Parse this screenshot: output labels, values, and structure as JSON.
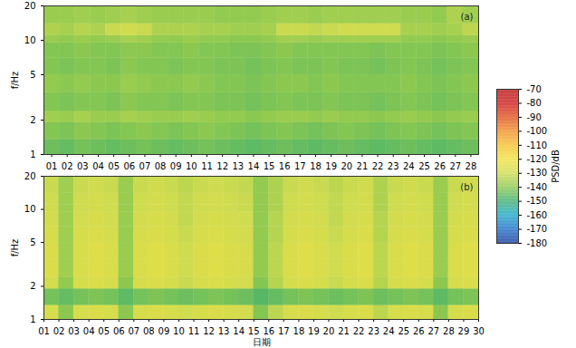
{
  "chart_data": [
    {
      "type": "heatmap",
      "annotation": "(a)",
      "y_label": "f/Hz",
      "log": "y",
      "xlim": [
        0.5,
        28.5
      ],
      "xticks": [
        {
          "value": 1,
          "label": "01"
        },
        {
          "value": 2,
          "label": "02"
        },
        {
          "value": 3,
          "label": "03"
        },
        {
          "value": 4,
          "label": "04"
        },
        {
          "value": 5,
          "label": "05"
        },
        {
          "value": 6,
          "label": "06"
        },
        {
          "value": 7,
          "label": "07"
        },
        {
          "value": 8,
          "label": "08"
        },
        {
          "value": 9,
          "label": "09"
        },
        {
          "value": 10,
          "label": "10"
        },
        {
          "value": 11,
          "label": "11"
        },
        {
          "value": 12,
          "label": "12"
        },
        {
          "value": 13,
          "label": "13"
        },
        {
          "value": 14,
          "label": "14"
        },
        {
          "value": 15,
          "label": "15"
        },
        {
          "value": 16,
          "label": "16"
        },
        {
          "value": 17,
          "label": "17"
        },
        {
          "value": 18,
          "label": "18"
        },
        {
          "value": 19,
          "label": "19"
        },
        {
          "value": 20,
          "label": "20"
        },
        {
          "value": 21,
          "label": "21"
        },
        {
          "value": 22,
          "label": "22"
        },
        {
          "value": 23,
          "label": "23"
        },
        {
          "value": 24,
          "label": "24"
        },
        {
          "value": 25,
          "label": "25"
        },
        {
          "value": 26,
          "label": "26"
        },
        {
          "value": 27,
          "label": "27"
        },
        {
          "value": 28,
          "label": "28"
        }
      ],
      "ylim": [
        1,
        20
      ],
      "yticks": [
        1,
        2,
        5,
        10,
        20
      ],
      "x_bins": [
        0.5,
        1.5,
        2.5,
        3.5,
        4.5,
        5.5,
        6.5,
        7.5,
        8.5,
        9.5,
        10.5,
        11.5,
        12.5,
        13.5,
        14.5,
        15.5,
        16.5,
        17.5,
        18.5,
        19.5,
        20.5,
        21.5,
        22.5,
        23.5,
        24.5,
        25.5,
        26.5,
        27.5,
        28.5
      ],
      "y_bins": [
        1,
        1.35,
        1.9,
        2.4,
        3.5,
        5,
        7,
        9.5,
        11,
        14,
        20
      ],
      "cells": [
        [
          -144,
          -145,
          -143,
          -144,
          -145,
          -144,
          -143,
          -144,
          -145,
          -144,
          -143,
          -144,
          -145,
          -146,
          -145,
          -144,
          -145,
          -146,
          -145,
          -144,
          -145,
          -146,
          -145,
          -144,
          -145,
          -146,
          -145,
          -144
        ],
        [
          -141,
          -142,
          -140,
          -141,
          -142,
          -141,
          -140,
          -141,
          -142,
          -141,
          -140,
          -141,
          -142,
          -143,
          -142,
          -141,
          -142,
          -143,
          -142,
          -141,
          -142,
          -143,
          -142,
          -141,
          -142,
          -143,
          -142,
          -141
        ],
        [
          -137,
          -138,
          -136,
          -138,
          -138,
          -136,
          -137,
          -138,
          -138,
          -137,
          -138,
          -139,
          -139,
          -140,
          -139,
          -138,
          -138,
          -139,
          -138,
          -139,
          -139,
          -140,
          -139,
          -138,
          -139,
          -140,
          -139,
          -138
        ],
        [
          -141,
          -142,
          -141,
          -141,
          -142,
          -140,
          -141,
          -141,
          -142,
          -141,
          -141,
          -142,
          -142,
          -143,
          -142,
          -141,
          -142,
          -142,
          -141,
          -142,
          -142,
          -143,
          -142,
          -141,
          -142,
          -143,
          -142,
          -141
        ],
        [
          -139,
          -140,
          -139,
          -140,
          -140,
          -138,
          -139,
          -140,
          -140,
          -139,
          -140,
          -141,
          -141,
          -142,
          -141,
          -140,
          -140,
          -141,
          -140,
          -141,
          -141,
          -141,
          -141,
          -140,
          -141,
          -142,
          -141,
          -140
        ],
        [
          -141,
          -142,
          -141,
          -141,
          -142,
          -140,
          -141,
          -141,
          -142,
          -141,
          -141,
          -142,
          -142,
          -143,
          -142,
          -141,
          -142,
          -142,
          -141,
          -142,
          -142,
          -143,
          -142,
          -141,
          -142,
          -143,
          -142,
          -141
        ],
        [
          -141,
          -141,
          -140,
          -141,
          -141,
          -140,
          -140,
          -141,
          -141,
          -140,
          -141,
          -141,
          -142,
          -142,
          -141,
          -140,
          -141,
          -141,
          -141,
          -141,
          -141,
          -142,
          -141,
          -141,
          -141,
          -142,
          -141,
          -140
        ],
        [
          -138,
          -139,
          -138,
          -139,
          -138,
          -136,
          -137,
          -139,
          -139,
          -138,
          -139,
          -139,
          -140,
          -140,
          -139,
          -137,
          -137,
          -138,
          -137,
          -137,
          -137,
          -137,
          -137,
          -139,
          -139,
          -140,
          -139,
          -138
        ],
        [
          -135,
          -136,
          -134,
          -135,
          -131,
          -130,
          -131,
          -135,
          -135,
          -135,
          -136,
          -136,
          -137,
          -137,
          -136,
          -131,
          -131,
          -132,
          -131,
          -130,
          -130,
          -130,
          -130,
          -136,
          -136,
          -137,
          -136,
          -133
        ],
        [
          -138,
          -138,
          -137,
          -138,
          -137,
          -136,
          -137,
          -138,
          -138,
          -138,
          -138,
          -139,
          -139,
          -139,
          -138,
          -137,
          -137,
          -138,
          -137,
          -137,
          -137,
          -137,
          -137,
          -138,
          -138,
          -139,
          -135,
          -137
        ]
      ]
    },
    {
      "type": "heatmap",
      "annotation": "(b)",
      "y_label": "f/Hz",
      "x_label": "日期",
      "log": "y",
      "xlim": [
        1,
        30
      ],
      "xticks": [
        {
          "value": 1,
          "label": "01"
        },
        {
          "value": 2,
          "label": "02"
        },
        {
          "value": 3,
          "label": "03"
        },
        {
          "value": 4,
          "label": "04"
        },
        {
          "value": 5,
          "label": "05"
        },
        {
          "value": 6,
          "label": "06"
        },
        {
          "value": 7,
          "label": "07"
        },
        {
          "value": 8,
          "label": "08"
        },
        {
          "value": 9,
          "label": "09"
        },
        {
          "value": 10,
          "label": "10"
        },
        {
          "value": 11,
          "label": "11"
        },
        {
          "value": 12,
          "label": "12"
        },
        {
          "value": 13,
          "label": "13"
        },
        {
          "value": 14,
          "label": "14"
        },
        {
          "value": 15,
          "label": "15"
        },
        {
          "value": 16,
          "label": "16"
        },
        {
          "value": 17,
          "label": "17"
        },
        {
          "value": 18,
          "label": "18"
        },
        {
          "value": 19,
          "label": "19"
        },
        {
          "value": 20,
          "label": "20"
        },
        {
          "value": 21,
          "label": "21"
        },
        {
          "value": 22,
          "label": "22"
        },
        {
          "value": 23,
          "label": "23"
        },
        {
          "value": 24,
          "label": "24"
        },
        {
          "value": 25,
          "label": "25"
        },
        {
          "value": 26,
          "label": "26"
        },
        {
          "value": 27,
          "label": "27"
        },
        {
          "value": 28,
          "label": "28"
        },
        {
          "value": 29,
          "label": "29"
        },
        {
          "value": 30,
          "label": "30"
        }
      ],
      "ylim": [
        1,
        20
      ],
      "yticks": [
        1,
        2,
        5,
        10,
        20
      ],
      "x_bins": [
        1,
        2,
        3,
        4,
        5,
        6,
        7,
        8,
        9,
        10,
        11,
        12,
        13,
        14,
        15,
        16,
        17,
        18,
        19,
        20,
        21,
        22,
        23,
        24,
        25,
        26,
        27,
        28,
        29,
        30
      ],
      "y_bins": [
        1,
        1.35,
        1.9,
        2.4,
        3.5,
        5,
        7,
        9.5,
        11,
        14,
        20
      ],
      "cells": [
        [
          -128,
          -140,
          -128,
          -127,
          -128,
          -140,
          -128,
          -127,
          -128,
          -130,
          -128,
          -127,
          -128,
          -129,
          -141,
          -133,
          -128,
          -127,
          -128,
          -130,
          -128,
          -127,
          -133,
          -128,
          -127,
          -128,
          -140,
          -128,
          -127
        ],
        [
          -143,
          -145,
          -143,
          -142,
          -143,
          -146,
          -143,
          -142,
          -143,
          -144,
          -143,
          -142,
          -143,
          -144,
          -147,
          -145,
          -143,
          -142,
          -143,
          -144,
          -143,
          -142,
          -144,
          -143,
          -142,
          -143,
          -146,
          -143,
          -142
        ],
        [
          -129,
          -139,
          -128,
          -127,
          -128,
          -140,
          -128,
          -127,
          -128,
          -131,
          -128,
          -127,
          -128,
          -129,
          -141,
          -134,
          -128,
          -127,
          -128,
          -131,
          -128,
          -127,
          -134,
          -128,
          -127,
          -128,
          -140,
          -128,
          -127
        ],
        [
          -127,
          -137,
          -127,
          -126,
          -127,
          -138,
          -127,
          -126,
          -127,
          -130,
          -127,
          -126,
          -127,
          -128,
          -139,
          -133,
          -127,
          -126,
          -127,
          -130,
          -127,
          -126,
          -133,
          -127,
          -126,
          -127,
          -138,
          -127,
          -126
        ],
        [
          -127,
          -137,
          -127,
          -126,
          -127,
          -138,
          -127,
          -126,
          -127,
          -130,
          -127,
          -126,
          -127,
          -128,
          -139,
          -133,
          -127,
          -126,
          -127,
          -130,
          -127,
          -126,
          -133,
          -127,
          -126,
          -127,
          -138,
          -127,
          -126
        ],
        [
          -128,
          -137,
          -128,
          -127,
          -128,
          -138,
          -128,
          -127,
          -128,
          -131,
          -128,
          -127,
          -128,
          -129,
          -139,
          -134,
          -128,
          -127,
          -128,
          -131,
          -128,
          -127,
          -134,
          -128,
          -127,
          -128,
          -138,
          -128,
          -127
        ],
        [
          -129,
          -137,
          -129,
          -128,
          -129,
          -138,
          -129,
          -128,
          -129,
          -132,
          -129,
          -128,
          -129,
          -130,
          -139,
          -134,
          -129,
          -128,
          -129,
          -132,
          -129,
          -128,
          -134,
          -129,
          -128,
          -129,
          -138,
          -129,
          -128
        ],
        [
          -130,
          -137,
          -130,
          -129,
          -130,
          -138,
          -130,
          -129,
          -130,
          -132,
          -130,
          -129,
          -130,
          -131,
          -139,
          -135,
          -130,
          -129,
          -130,
          -132,
          -130,
          -129,
          -135,
          -130,
          -129,
          -130,
          -138,
          -130,
          -129
        ],
        [
          -130,
          -137,
          -130,
          -129,
          -130,
          -138,
          -130,
          -129,
          -130,
          -132,
          -130,
          -129,
          -130,
          -131,
          -139,
          -135,
          -130,
          -129,
          -130,
          -132,
          -130,
          -129,
          -135,
          -130,
          -129,
          -130,
          -138,
          -130,
          -129
        ],
        [
          -131,
          -137,
          -131,
          -130,
          -131,
          -138,
          -131,
          -130,
          -131,
          -133,
          -131,
          -130,
          -131,
          -132,
          -139,
          -135,
          -131,
          -130,
          -131,
          -133,
          -131,
          -130,
          -135,
          -131,
          -130,
          -131,
          -138,
          -131,
          -130
        ]
      ],
      "colorbar": {
        "label": "PSD/dB",
        "range": [
          -180,
          -70
        ],
        "ticks": [
          -70,
          -80,
          -90,
          -100,
          -110,
          -120,
          -130,
          -140,
          -150,
          -160,
          -170,
          -180
        ]
      }
    }
  ]
}
